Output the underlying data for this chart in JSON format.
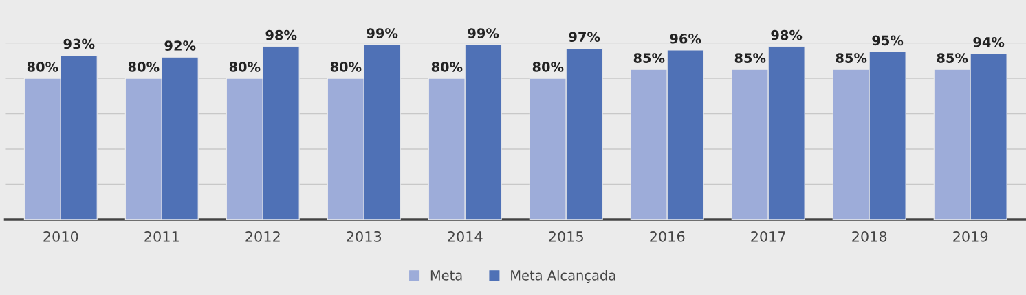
{
  "chart_data": {
    "type": "bar",
    "categories": [
      "2010",
      "2011",
      "2012",
      "2013",
      "2014",
      "2015",
      "2016",
      "2017",
      "2018",
      "2019"
    ],
    "series": [
      {
        "name": "Meta",
        "color": "#9dacd9",
        "values": [
          80,
          80,
          80,
          80,
          80,
          80,
          85,
          85,
          85,
          85
        ],
        "value_labels": [
          "80%",
          "80%",
          "80%",
          "80%",
          "80%",
          "80%",
          "85%",
          "85%",
          "85%",
          "85%"
        ]
      },
      {
        "name": "Meta Alcançada",
        "color": "#4f71b6",
        "values": [
          93,
          92,
          98,
          99,
          99,
          97,
          96,
          98,
          95,
          94
        ],
        "value_labels": [
          "93%",
          "92%",
          "98%",
          "99%",
          "99%",
          "97%",
          "96%",
          "98%",
          "95%",
          "94%"
        ]
      }
    ],
    "ylim": [
      0,
      120
    ],
    "yticks": [
      {
        "value": 0,
        "label": null
      },
      {
        "value": 20,
        "label": null
      },
      {
        "value": 40,
        "label": null
      },
      {
        "value": 60,
        "label": null
      },
      {
        "value": 80,
        "label": null
      },
      {
        "value": 100,
        "label": null
      },
      {
        "value": 120,
        "label": null
      }
    ],
    "grid": "y",
    "tick_labels": "x",
    "legend": "bottom"
  }
}
